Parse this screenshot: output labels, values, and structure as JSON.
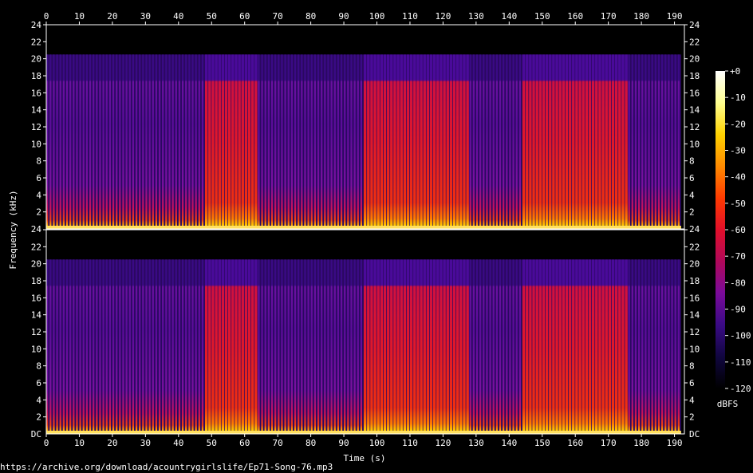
{
  "chart_data": {
    "type": "heatmap",
    "title": "",
    "xlabel": "Time (s)",
    "ylabel": "Frequency (kHz)",
    "xlim": [
      0,
      193
    ],
    "x_ticks": [
      0,
      10,
      20,
      30,
      40,
      50,
      60,
      70,
      80,
      90,
      100,
      110,
      120,
      130,
      140,
      150,
      160,
      170,
      180,
      190
    ],
    "ylim_khz": [
      0,
      24
    ],
    "y_ticks": [
      2,
      4,
      6,
      8,
      10,
      12,
      14,
      16,
      18,
      20,
      22,
      24
    ],
    "y_bottom_label": "DC",
    "channels": 2,
    "cutoff_khz": 20.5,
    "audio_end_s": 192,
    "loud_sections_s": [
      [
        48,
        64
      ],
      [
        96,
        128
      ],
      [
        144,
        176
      ]
    ],
    "quiet_sections_s": [
      [
        0,
        48
      ],
      [
        64,
        96
      ],
      [
        128,
        144
      ],
      [
        176,
        192
      ]
    ],
    "colorbar": {
      "label": "dBFS",
      "ticks": [
        "+0",
        "-10",
        "-20",
        "-30",
        "-40",
        "-50",
        "-60",
        "-70",
        "-80",
        "-90",
        "-100",
        "-110",
        "-120"
      ],
      "range_dbfs": [
        -120,
        0
      ],
      "colors": [
        "#000000",
        "#10063f",
        "#3a0a85",
        "#7a0a9a",
        "#b0085a",
        "#e20f2a",
        "#ff3a00",
        "#ff8a00",
        "#ffd200",
        "#ffff90",
        "#ffffff"
      ]
    }
  },
  "footer": {
    "source_url": "https://archive.org/download/acountrygirlslife/Ep71-Song-76.mp3"
  }
}
